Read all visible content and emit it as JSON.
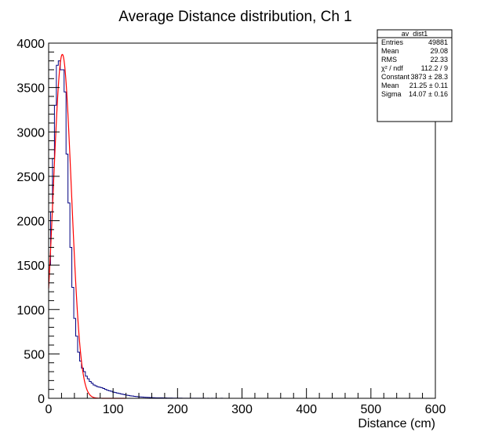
{
  "chart_data": {
    "type": "histogram",
    "title": "Average Distance distribution, Ch 1",
    "xlabel": "Distance (cm)",
    "ylabel": "",
    "xlim": [
      0,
      600
    ],
    "ylim": [
      0,
      4000
    ],
    "x_ticks": [
      0,
      100,
      200,
      300,
      400,
      500,
      600
    ],
    "y_ticks": [
      0,
      500,
      1000,
      1500,
      2000,
      2500,
      3000,
      3500,
      4000
    ],
    "grid": false,
    "bin_width": 3,
    "series": [
      {
        "name": "av_dist1",
        "color": "#000080",
        "bin_edges_start": 0,
        "counts": [
          1500,
          2100,
          2700,
          3300,
          3750,
          3800,
          3700,
          3700,
          3450,
          2750,
          2200,
          1700,
          1250,
          900,
          700,
          520,
          420,
          340,
          300,
          250,
          220,
          190,
          170,
          150,
          140,
          130,
          125,
          120,
          110,
          100,
          90,
          85,
          80,
          70,
          65,
          60,
          55,
          50,
          45,
          40,
          35,
          32,
          28,
          25,
          22,
          20,
          18,
          16,
          14,
          12,
          11,
          10,
          9,
          8,
          7,
          6,
          6,
          5,
          5,
          4,
          4,
          3,
          3,
          3,
          2,
          2,
          2,
          2,
          2,
          1,
          1,
          1,
          1,
          1,
          1,
          1,
          1,
          1,
          1,
          1,
          1,
          0,
          1,
          0,
          1,
          0,
          1,
          0,
          0,
          1,
          0,
          0,
          0,
          0,
          0,
          0,
          0,
          0,
          0,
          0,
          0,
          0,
          0,
          0,
          0,
          0,
          0,
          0,
          0,
          0,
          0,
          0,
          0,
          0,
          0,
          0,
          0,
          0,
          0,
          0,
          0,
          0,
          0,
          0,
          0,
          0,
          0,
          0,
          0,
          0,
          0,
          0,
          0,
          0,
          0,
          0,
          0,
          0,
          0,
          0,
          0,
          0,
          0,
          0,
          0,
          0,
          0,
          0,
          0,
          0,
          0,
          0,
          0,
          0,
          0,
          0,
          0,
          0,
          0,
          0,
          0,
          0,
          0,
          0,
          0,
          0,
          0,
          0,
          0,
          0,
          0,
          0,
          0,
          0,
          0,
          0,
          0,
          0,
          0,
          0,
          0,
          0,
          0,
          0,
          0,
          0,
          0,
          0,
          0,
          0,
          0,
          0,
          0,
          0,
          0,
          0,
          0,
          0,
          0,
          0,
          0,
          0
        ]
      }
    ],
    "fit": {
      "function": "gaus",
      "color": "#ff0000",
      "constant": 3873,
      "mean": 21.25,
      "sigma": 14.07,
      "x_range": [
        0,
        120
      ]
    }
  },
  "stats_box": {
    "title": "av_dist1",
    "rows": [
      {
        "label": "Entries",
        "value": "49881"
      },
      {
        "label": "Mean",
        "value": "29.08"
      },
      {
        "label": "RMS",
        "value": "22.33"
      },
      {
        "label": "χ² / ndf",
        "value": "112.2 / 9"
      },
      {
        "label": "Constant",
        "value": "3873  ± 28.3"
      },
      {
        "label": "Mean",
        "value": "21.25  ± 0.11"
      },
      {
        "label": "Sigma",
        "value": "14.07  ± 0.16"
      }
    ]
  }
}
